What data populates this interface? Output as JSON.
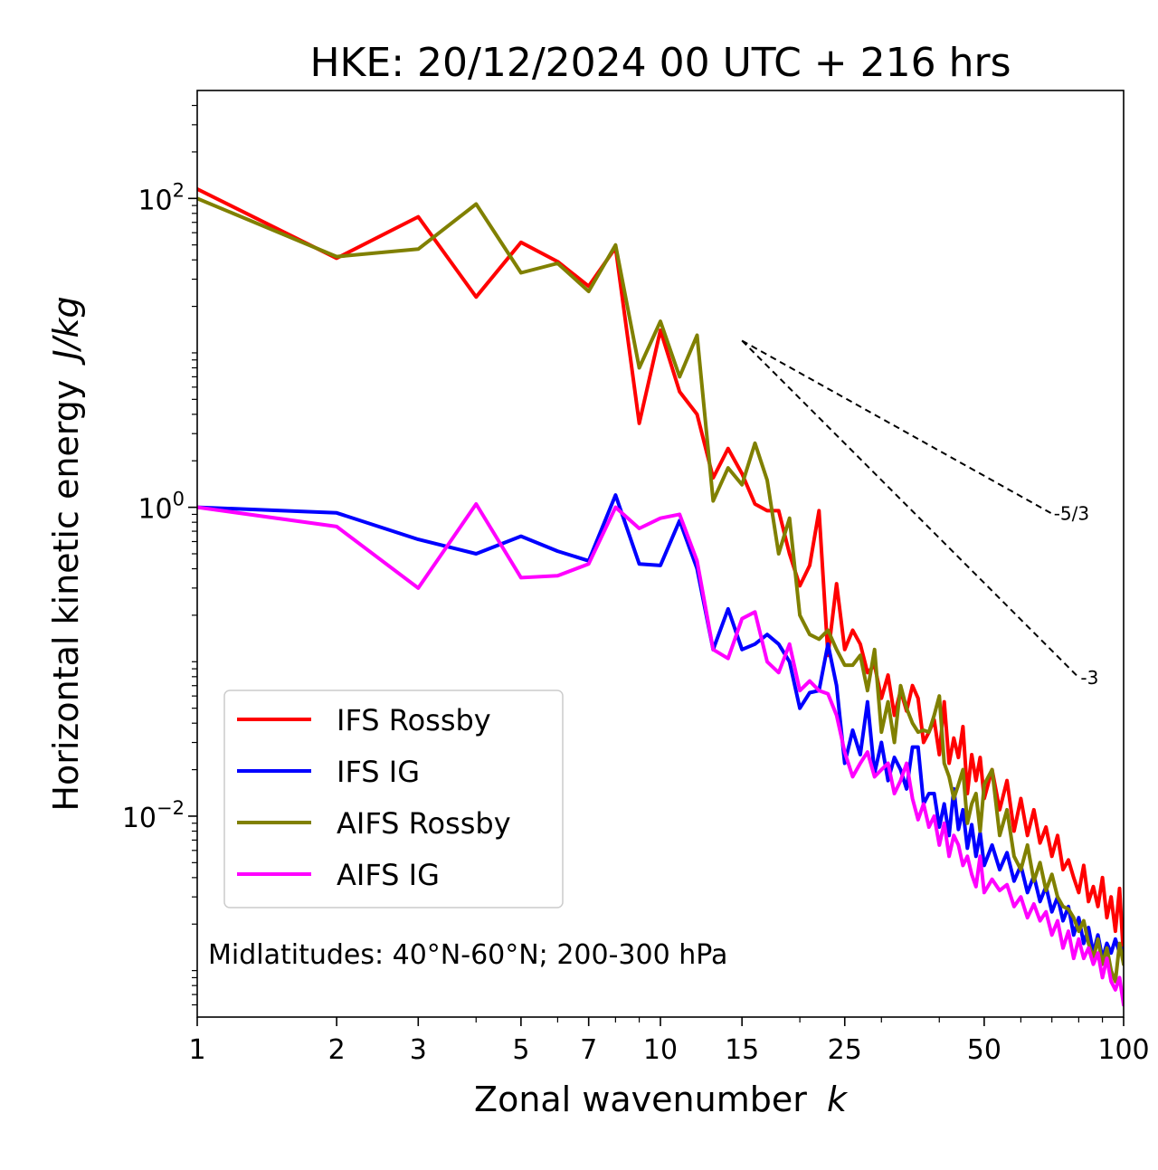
{
  "chart_data": {
    "type": "line",
    "title": "HKE: 20/12/2024 00 UTC + 216 hrs",
    "xlabel": "Zonal wavenumber",
    "xlabel_var": "k",
    "ylabel": "Horizontal kinetic energy",
    "ylabel_unit": "J/kg",
    "xscale": "log",
    "yscale": "log",
    "xlim": [
      1,
      100
    ],
    "ylim": [
      0.0005,
      500
    ],
    "x_ticks": [
      {
        "value": 1,
        "label": "1"
      },
      {
        "value": 2,
        "label": "2"
      },
      {
        "value": 3,
        "label": "3"
      },
      {
        "value": 5,
        "label": "5"
      },
      {
        "value": 7,
        "label": "7"
      },
      {
        "value": 10,
        "label": "10"
      },
      {
        "value": 15,
        "label": "15"
      },
      {
        "value": 25,
        "label": "25"
      },
      {
        "value": 50,
        "label": "50"
      },
      {
        "value": 100,
        "label": "100"
      }
    ],
    "y_ticks": [
      {
        "value": 100,
        "base": "10",
        "exp": "2"
      },
      {
        "value": 1,
        "base": "10",
        "exp": "0"
      },
      {
        "value": 0.01,
        "base": "10",
        "exp": "−2"
      }
    ],
    "legend_position": "lower-left",
    "annotation": "Midlatitudes: 40°N-60°N; 200-300 hPa",
    "reference_lines": [
      {
        "label": "-5/3",
        "x": [
          15,
          70
        ],
        "y": [
          12.0,
          0.91
        ],
        "color": "#000000",
        "style": "dashed"
      },
      {
        "label": "-3",
        "x": [
          15,
          80
        ],
        "y": [
          12.0,
          0.079
        ],
        "color": "#000000",
        "style": "dashed"
      }
    ],
    "series": [
      {
        "name": "IFS Rossby",
        "color": "#ff0000",
        "x": [
          1,
          2,
          3,
          4,
          5,
          6,
          7,
          8,
          9,
          10,
          11,
          12,
          13,
          14,
          15,
          16,
          17,
          18,
          19,
          20,
          21,
          22,
          23,
          24,
          25,
          26,
          27,
          28,
          29,
          30,
          31,
          32,
          33,
          34,
          35,
          36,
          37,
          38,
          39,
          40,
          41,
          42,
          43,
          44,
          45,
          46,
          47,
          48,
          49,
          50,
          52,
          54,
          56,
          58,
          60,
          62,
          64,
          66,
          68,
          70,
          72,
          74,
          76,
          78,
          80,
          82,
          84,
          86,
          88,
          90,
          92,
          94,
          96,
          98,
          100
        ],
        "y": [
          115,
          41,
          76,
          23,
          52,
          39,
          27,
          48,
          3.5,
          14,
          5.6,
          4.0,
          1.55,
          2.4,
          1.65,
          1.05,
          0.95,
          0.95,
          0.5,
          0.31,
          0.42,
          0.95,
          0.11,
          0.32,
          0.12,
          0.16,
          0.13,
          0.085,
          0.095,
          0.058,
          0.082,
          0.045,
          0.065,
          0.048,
          0.07,
          0.058,
          0.03,
          0.035,
          0.042,
          0.025,
          0.055,
          0.022,
          0.032,
          0.024,
          0.038,
          0.014,
          0.025,
          0.017,
          0.024,
          0.013,
          0.02,
          0.011,
          0.017,
          0.008,
          0.013,
          0.0075,
          0.011,
          0.0067,
          0.0085,
          0.0055,
          0.0075,
          0.0045,
          0.0052,
          0.004,
          0.0032,
          0.0048,
          0.0028,
          0.0035,
          0.0026,
          0.004,
          0.0022,
          0.003,
          0.0018,
          0.0034,
          0.0012
        ]
      },
      {
        "name": "IFS IG",
        "color": "#0000ff",
        "x": [
          1,
          2,
          3,
          4,
          5,
          6,
          7,
          8,
          9,
          10,
          11,
          12,
          13,
          14,
          15,
          16,
          17,
          18,
          19,
          20,
          21,
          22,
          23,
          24,
          25,
          26,
          27,
          28,
          29,
          30,
          31,
          32,
          33,
          34,
          35,
          36,
          37,
          38,
          39,
          40,
          41,
          42,
          43,
          44,
          45,
          46,
          47,
          48,
          49,
          50,
          52,
          54,
          56,
          58,
          60,
          62,
          64,
          66,
          68,
          70,
          72,
          74,
          76,
          78,
          80,
          82,
          84,
          86,
          88,
          90,
          92,
          94,
          96,
          98,
          100
        ],
        "y": [
          1.0,
          0.92,
          0.62,
          0.5,
          0.65,
          0.52,
          0.45,
          1.2,
          0.43,
          0.42,
          0.82,
          0.4,
          0.12,
          0.22,
          0.12,
          0.13,
          0.15,
          0.13,
          0.1,
          0.05,
          0.063,
          0.065,
          0.13,
          0.07,
          0.022,
          0.036,
          0.025,
          0.055,
          0.019,
          0.03,
          0.017,
          0.024,
          0.02,
          0.015,
          0.028,
          0.028,
          0.012,
          0.014,
          0.014,
          0.0085,
          0.012,
          0.0075,
          0.015,
          0.0082,
          0.011,
          0.0062,
          0.0088,
          0.0055,
          0.0078,
          0.0048,
          0.0065,
          0.0045,
          0.0058,
          0.0038,
          0.0048,
          0.0032,
          0.0041,
          0.0028,
          0.0035,
          0.0024,
          0.003,
          0.0021,
          0.0026,
          0.0017,
          0.0022,
          0.0015,
          0.0019,
          0.0013,
          0.0017,
          0.0012,
          0.0015,
          0.0013,
          0.0016,
          0.0013,
          0.0014
        ]
      },
      {
        "name": "AIFS Rossby",
        "color": "#808000",
        "x": [
          1,
          2,
          3,
          4,
          5,
          6,
          7,
          8,
          9,
          10,
          11,
          12,
          13,
          14,
          15,
          16,
          17,
          18,
          19,
          20,
          21,
          22,
          23,
          24,
          25,
          26,
          27,
          28,
          29,
          30,
          31,
          32,
          33,
          34,
          35,
          36,
          37,
          38,
          39,
          40,
          41,
          42,
          43,
          44,
          45,
          46,
          47,
          48,
          49,
          50,
          52,
          54,
          56,
          58,
          60,
          62,
          64,
          66,
          68,
          70,
          72,
          74,
          76,
          78,
          80,
          82,
          84,
          86,
          88,
          90,
          92,
          94,
          96,
          98,
          100
        ],
        "y": [
          100,
          42,
          47,
          92,
          33,
          38,
          25,
          50,
          8,
          16,
          7,
          13,
          1.1,
          1.8,
          1.4,
          2.6,
          1.5,
          0.5,
          0.85,
          0.2,
          0.15,
          0.14,
          0.16,
          0.12,
          0.095,
          0.095,
          0.11,
          0.065,
          0.12,
          0.035,
          0.055,
          0.03,
          0.07,
          0.05,
          0.04,
          0.035,
          0.036,
          0.035,
          0.045,
          0.06,
          0.022,
          0.018,
          0.013,
          0.016,
          0.02,
          0.009,
          0.012,
          0.014,
          0.008,
          0.016,
          0.02,
          0.0075,
          0.011,
          0.0055,
          0.0045,
          0.0065,
          0.0038,
          0.005,
          0.0033,
          0.0042,
          0.003,
          0.0026,
          0.0025,
          0.0022,
          0.0018,
          0.0021,
          0.0015,
          0.0012,
          0.0016,
          0.0011,
          0.0014,
          0.001,
          0.00085,
          0.0015,
          0.0011
        ]
      },
      {
        "name": "AIFS IG",
        "color": "#ff00ff",
        "x": [
          1,
          2,
          3,
          4,
          5,
          6,
          7,
          8,
          9,
          10,
          11,
          12,
          13,
          14,
          15,
          16,
          17,
          18,
          19,
          20,
          21,
          22,
          23,
          24,
          25,
          26,
          27,
          28,
          29,
          30,
          31,
          32,
          33,
          34,
          35,
          36,
          37,
          38,
          39,
          40,
          41,
          42,
          43,
          44,
          45,
          46,
          47,
          48,
          49,
          50,
          52,
          54,
          56,
          58,
          60,
          62,
          64,
          66,
          68,
          70,
          72,
          74,
          76,
          78,
          80,
          82,
          84,
          86,
          88,
          90,
          92,
          94,
          96,
          98,
          100
        ],
        "y": [
          1.0,
          0.75,
          0.3,
          1.05,
          0.35,
          0.36,
          0.43,
          1.0,
          0.73,
          0.85,
          0.9,
          0.45,
          0.12,
          0.105,
          0.19,
          0.21,
          0.1,
          0.085,
          0.13,
          0.065,
          0.075,
          0.065,
          0.062,
          0.045,
          0.026,
          0.018,
          0.022,
          0.026,
          0.018,
          0.02,
          0.022,
          0.014,
          0.017,
          0.022,
          0.013,
          0.0095,
          0.012,
          0.0085,
          0.01,
          0.0065,
          0.009,
          0.0055,
          0.0075,
          0.0065,
          0.0048,
          0.0055,
          0.0042,
          0.0035,
          0.0055,
          0.0032,
          0.0039,
          0.0033,
          0.0036,
          0.0026,
          0.003,
          0.0022,
          0.0027,
          0.0021,
          0.0024,
          0.0017,
          0.0021,
          0.0014,
          0.0018,
          0.0012,
          0.0016,
          0.0012,
          0.0014,
          0.0011,
          0.0013,
          0.0009,
          0.0012,
          0.00085,
          0.00075,
          0.0009,
          0.0006
        ]
      }
    ]
  }
}
